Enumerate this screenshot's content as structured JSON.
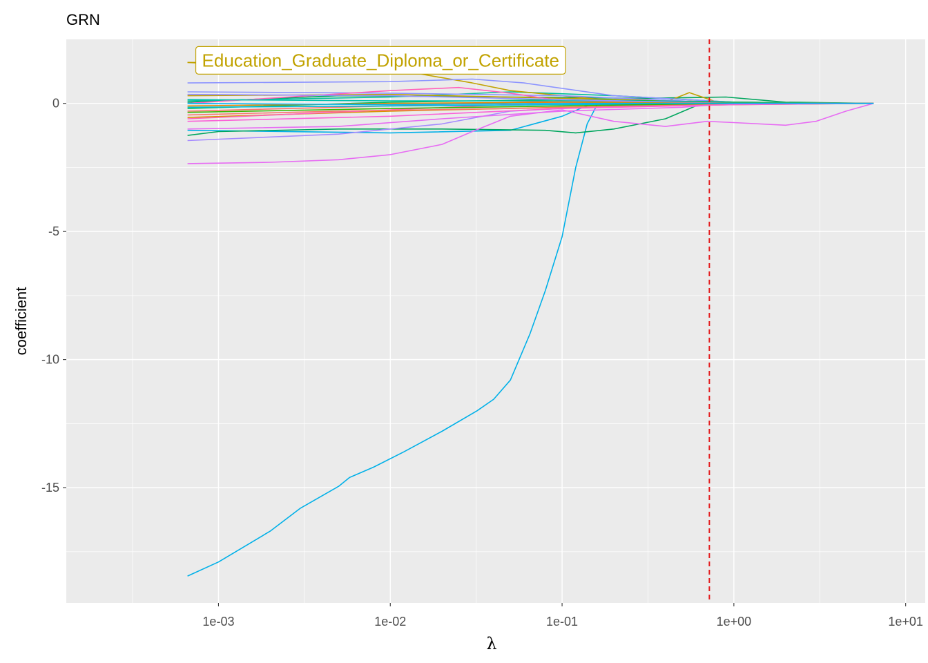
{
  "chart_data": {
    "type": "line",
    "title": "GRN",
    "xlabel": "λ",
    "ylabel": "coefficient",
    "x_scale": "log10",
    "xlim": [
      0.00013,
      13
    ],
    "ylim": [
      -19.5,
      2.5
    ],
    "x_ticks": [
      {
        "value": 0.001,
        "label": "1e-03"
      },
      {
        "value": 0.01,
        "label": "1e-02"
      },
      {
        "value": 0.1,
        "label": "1e-01"
      },
      {
        "value": 1,
        "label": "1e+00"
      },
      {
        "value": 10,
        "label": "1e+01"
      }
    ],
    "y_ticks": [
      {
        "value": 0,
        "label": "0"
      },
      {
        "value": -5,
        "label": "-5"
      },
      {
        "value": -10,
        "label": "-10"
      },
      {
        "value": -15,
        "label": "-15"
      }
    ],
    "grid": true,
    "legend": "none",
    "vline": {
      "x": 0.72,
      "color": "#e31a1c",
      "style": "dashed"
    },
    "annotation": {
      "text": "Education_Graduate_Diploma_or_Certificate",
      "color": "#c1a200",
      "anchor_x": 0.00066,
      "anchor_y": 1.6
    },
    "series": [
      {
        "color": "#00b0e8",
        "points": [
          [
            0.00066,
            -18.45
          ],
          [
            0.001,
            -17.9
          ],
          [
            0.002,
            -16.7
          ],
          [
            0.003,
            -15.8
          ],
          [
            0.005,
            -14.95
          ],
          [
            0.0058,
            -14.6
          ],
          [
            0.008,
            -14.2
          ],
          [
            0.012,
            -13.6
          ],
          [
            0.02,
            -12.8
          ],
          [
            0.032,
            -12.0
          ],
          [
            0.04,
            -11.55
          ],
          [
            0.05,
            -10.8
          ],
          [
            0.065,
            -9.0
          ],
          [
            0.08,
            -7.3
          ],
          [
            0.1,
            -5.2
          ],
          [
            0.12,
            -2.5
          ],
          [
            0.14,
            -0.8
          ],
          [
            0.16,
            -0.05
          ],
          [
            0.3,
            -0.03
          ],
          [
            1,
            -0.01
          ],
          [
            6.5,
            0
          ]
        ]
      },
      {
        "color": "#00b0e8",
        "points": [
          [
            0.00066,
            -1.05
          ],
          [
            0.01,
            -1.15
          ],
          [
            0.05,
            -1.05
          ],
          [
            0.1,
            -0.5
          ],
          [
            0.15,
            0.0
          ],
          [
            1,
            0
          ],
          [
            6.5,
            0
          ]
        ]
      },
      {
        "color": "#00a65e",
        "points": [
          [
            0.00066,
            -1.25
          ],
          [
            0.001,
            -1.1
          ],
          [
            0.005,
            -1.0
          ],
          [
            0.02,
            -1.0
          ],
          [
            0.08,
            -1.05
          ],
          [
            0.12,
            -1.15
          ],
          [
            0.2,
            -1.0
          ],
          [
            0.4,
            -0.6
          ],
          [
            0.6,
            -0.1
          ],
          [
            1,
            0
          ],
          [
            6.5,
            0
          ]
        ]
      },
      {
        "color": "#00a65e",
        "points": [
          [
            0.00066,
            0.05
          ],
          [
            0.005,
            0.3
          ],
          [
            0.05,
            0.25
          ],
          [
            0.3,
            0.2
          ],
          [
            0.9,
            0.25
          ],
          [
            2,
            0.05
          ],
          [
            6.5,
            0
          ]
        ]
      },
      {
        "color": "#00bf9a",
        "points": [
          [
            0.00066,
            0.1
          ],
          [
            0.01,
            0.25
          ],
          [
            0.05,
            0.45
          ],
          [
            0.2,
            0.3
          ],
          [
            1,
            0.05
          ],
          [
            6.5,
            0
          ]
        ]
      },
      {
        "color": "#c1a200",
        "points": [
          [
            0.00066,
            1.6
          ],
          [
            0.005,
            1.3
          ],
          [
            0.015,
            1.15
          ],
          [
            0.03,
            0.8
          ],
          [
            0.05,
            0.5
          ],
          [
            0.2,
            0.1
          ],
          [
            0.4,
            0.05
          ],
          [
            0.55,
            0.42
          ],
          [
            0.8,
            0.05
          ],
          [
            1,
            0
          ],
          [
            6.5,
            0
          ]
        ]
      },
      {
        "color": "#c1a200",
        "points": [
          [
            0.00066,
            0.3
          ],
          [
            0.01,
            0.35
          ],
          [
            0.1,
            0.2
          ],
          [
            1,
            0.05
          ],
          [
            6.5,
            0
          ]
        ]
      },
      {
        "color": "#d89000",
        "points": [
          [
            0.00066,
            -0.55
          ],
          [
            0.01,
            -0.3
          ],
          [
            0.1,
            -0.15
          ],
          [
            1,
            -0.05
          ],
          [
            6.5,
            0
          ]
        ]
      },
      {
        "color": "#8b93ff",
        "points": [
          [
            0.00066,
            0.8
          ],
          [
            0.01,
            0.85
          ],
          [
            0.03,
            0.95
          ],
          [
            0.06,
            0.8
          ],
          [
            0.2,
            0.3
          ],
          [
            1,
            0.05
          ],
          [
            6.5,
            0
          ]
        ]
      },
      {
        "color": "#8b93ff",
        "points": [
          [
            0.00066,
            0.45
          ],
          [
            0.01,
            0.4
          ],
          [
            0.1,
            0.3
          ],
          [
            0.5,
            0.1
          ],
          [
            1,
            0
          ],
          [
            6.5,
            0
          ]
        ]
      },
      {
        "color": "#a58aff",
        "points": [
          [
            0.00066,
            -1.45
          ],
          [
            0.005,
            -1.2
          ],
          [
            0.02,
            -0.8
          ],
          [
            0.05,
            -0.3
          ],
          [
            0.2,
            -0.1
          ],
          [
            1,
            0
          ],
          [
            6.5,
            0
          ]
        ]
      },
      {
        "color": "#e76bf3",
        "points": [
          [
            0.00066,
            -2.35
          ],
          [
            0.002,
            -2.3
          ],
          [
            0.005,
            -2.2
          ],
          [
            0.01,
            -2.0
          ],
          [
            0.02,
            -1.6
          ],
          [
            0.03,
            -1.1
          ],
          [
            0.05,
            -0.5
          ],
          [
            0.1,
            -0.25
          ],
          [
            0.2,
            -0.7
          ],
          [
            0.4,
            -0.9
          ],
          [
            0.7,
            -0.7
          ],
          [
            1,
            -0.75
          ],
          [
            2,
            -0.85
          ],
          [
            3,
            -0.7
          ],
          [
            4.5,
            -0.3
          ],
          [
            6.5,
            0
          ]
        ]
      },
      {
        "color": "#e76bf3",
        "points": [
          [
            0.00066,
            -1.0
          ],
          [
            0.005,
            -0.9
          ],
          [
            0.02,
            -0.6
          ],
          [
            0.1,
            -0.3
          ],
          [
            0.5,
            -0.15
          ],
          [
            1,
            0
          ],
          [
            6.5,
            0
          ]
        ]
      },
      {
        "color": "#ff62bc",
        "points": [
          [
            0.00066,
            0.0
          ],
          [
            0.01,
            0.5
          ],
          [
            0.025,
            0.62
          ],
          [
            0.05,
            0.4
          ],
          [
            0.1,
            0.1
          ],
          [
            0.3,
            0.05
          ],
          [
            1,
            0
          ],
          [
            6.5,
            0
          ]
        ]
      },
      {
        "color": "#ff62bc",
        "points": [
          [
            0.00066,
            -0.6
          ],
          [
            0.01,
            -0.25
          ],
          [
            0.1,
            0.05
          ],
          [
            0.5,
            -0.05
          ],
          [
            1,
            0
          ],
          [
            6.5,
            0
          ]
        ]
      },
      {
        "color": "#f8766d",
        "points": [
          [
            0.00066,
            -0.45
          ],
          [
            0.005,
            -0.3
          ],
          [
            0.05,
            -0.2
          ],
          [
            0.3,
            -0.1
          ],
          [
            1,
            -0.02
          ],
          [
            6.5,
            0
          ]
        ]
      },
      {
        "color": "#f8766d",
        "points": [
          [
            0.00066,
            -0.3
          ],
          [
            0.01,
            -0.1
          ],
          [
            0.1,
            0.1
          ],
          [
            1,
            0.02
          ],
          [
            6.5,
            0
          ]
        ]
      },
      {
        "color": "#00bc5a",
        "points": [
          [
            0.00066,
            -0.2
          ],
          [
            0.01,
            0.05
          ],
          [
            0.1,
            0.15
          ],
          [
            1,
            0.05
          ],
          [
            6.5,
            0
          ]
        ]
      },
      {
        "color": "#00bcd8",
        "points": [
          [
            0.00066,
            -0.15
          ],
          [
            0.01,
            -0.1
          ],
          [
            0.1,
            -0.05
          ],
          [
            1,
            0
          ],
          [
            6.5,
            0
          ]
        ]
      },
      {
        "color": "#00c1ab",
        "points": [
          [
            0.00066,
            0.15
          ],
          [
            0.01,
            0.1
          ],
          [
            0.2,
            0.1
          ],
          [
            1,
            0
          ],
          [
            6.5,
            0
          ]
        ]
      },
      {
        "color": "#39b600",
        "points": [
          [
            0.00066,
            -0.35
          ],
          [
            0.01,
            -0.2
          ],
          [
            0.3,
            -0.05
          ],
          [
            1,
            0
          ],
          [
            6.5,
            0
          ]
        ]
      },
      {
        "color": "#9590ff",
        "points": [
          [
            0.00066,
            0.35
          ],
          [
            0.01,
            0.3
          ],
          [
            0.1,
            0.15
          ],
          [
            1,
            0
          ],
          [
            6.5,
            0
          ]
        ]
      },
      {
        "color": "#fb61d7",
        "points": [
          [
            0.00066,
            -0.7
          ],
          [
            0.01,
            -0.5
          ],
          [
            0.1,
            -0.2
          ],
          [
            1,
            -0.05
          ],
          [
            6.5,
            0
          ]
        ]
      },
      {
        "color": "#e58700",
        "points": [
          [
            0.00066,
            -0.1
          ],
          [
            0.01,
            0.0
          ],
          [
            0.1,
            0.05
          ],
          [
            1,
            0
          ],
          [
            6.5,
            0
          ]
        ]
      },
      {
        "color": "#00b4f0",
        "points": [
          [
            0.00066,
            0.0
          ],
          [
            0.01,
            -0.05
          ],
          [
            0.1,
            0.0
          ],
          [
            1,
            0
          ],
          [
            6.5,
            0
          ]
        ]
      }
    ]
  }
}
